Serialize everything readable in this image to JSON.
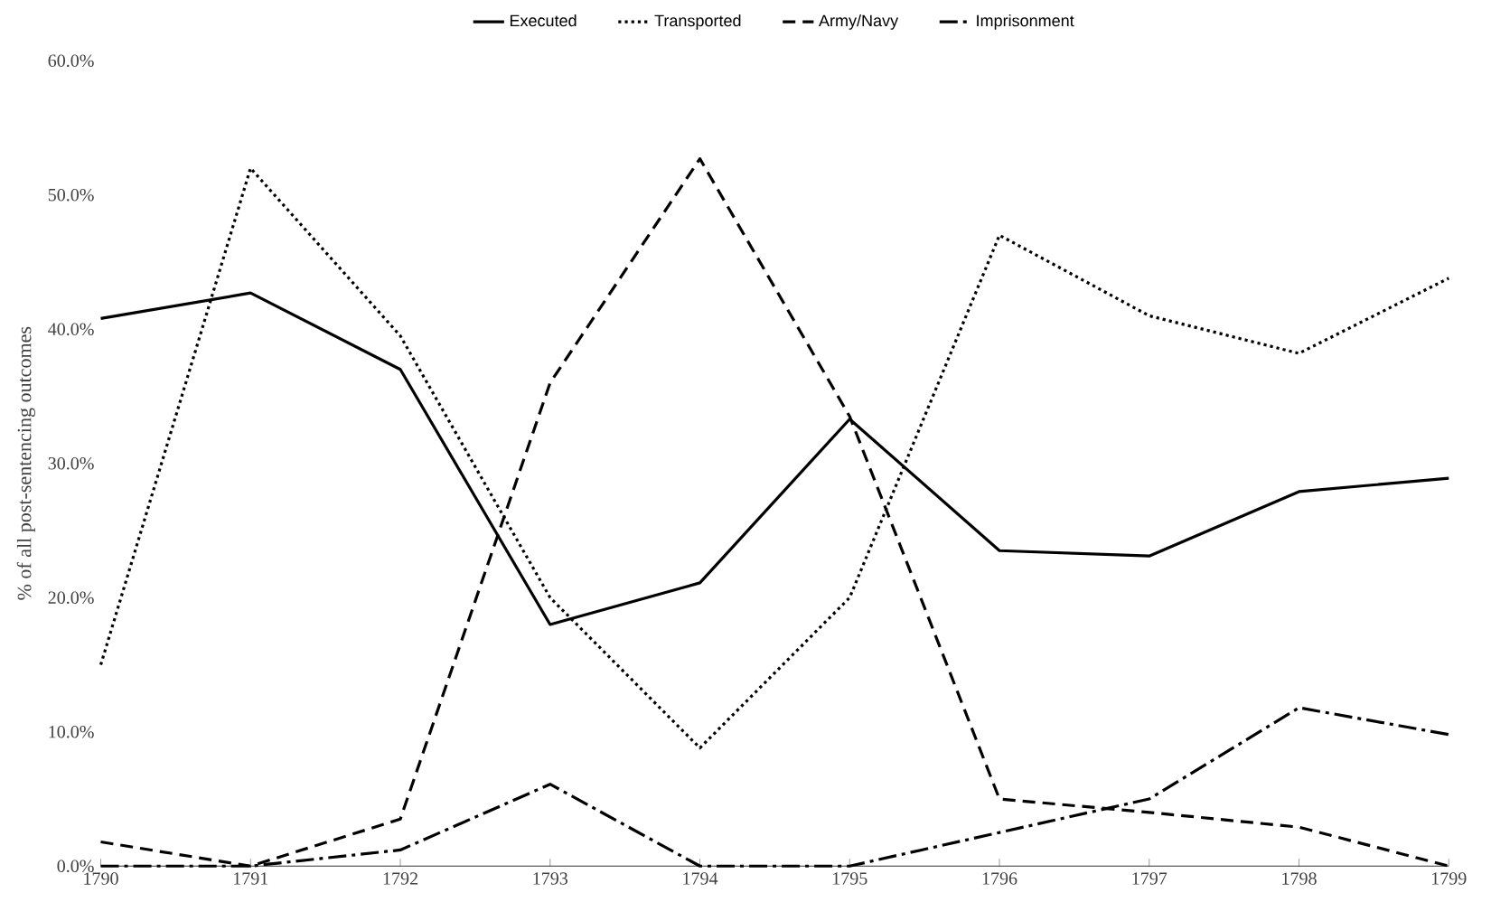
{
  "chart_data": {
    "type": "line",
    "ylabel": "% of all post-sentencing outcomes",
    "categories": [
      "1790",
      "1791",
      "1792",
      "1793",
      "1794",
      "1795",
      "1796",
      "1797",
      "1798",
      "1799"
    ],
    "series": [
      {
        "name": "Executed",
        "color": "#000000",
        "line_style": "solid",
        "values": [
          40.8,
          42.7,
          37.0,
          18.0,
          21.1,
          33.3,
          23.5,
          23.1,
          27.9,
          28.9
        ]
      },
      {
        "name": "Transported",
        "color": "#000000",
        "line_style": "dotted",
        "values": [
          15.0,
          52.0,
          39.5,
          20.0,
          8.8,
          20.0,
          47.0,
          41.0,
          38.2,
          43.8
        ]
      },
      {
        "name": "Army/Navy",
        "color": "#000000",
        "line_style": "dashed",
        "values": [
          1.8,
          0,
          3.5,
          36.0,
          52.7,
          33.5,
          5.0,
          4.0,
          2.9,
          0
        ]
      },
      {
        "name": "Imprisonment",
        "color": "#000000",
        "line_style": "dashdot",
        "values": [
          0,
          0,
          1.2,
          6.1,
          0,
          0,
          2.5,
          5.0,
          11.8,
          9.8
        ]
      }
    ],
    "ylim": [
      0,
      60
    ],
    "yticks": [
      {
        "value": 0,
        "label": "0.0%"
      },
      {
        "value": 10,
        "label": "10.0%"
      },
      {
        "value": 20,
        "label": "20.0%"
      },
      {
        "value": 30,
        "label": "30.0%"
      },
      {
        "value": 40,
        "label": "40.0%"
      },
      {
        "value": 50,
        "label": "50.0%"
      },
      {
        "value": 60,
        "label": "60.0%"
      }
    ],
    "grid": false,
    "legend": "top",
    "marker": "none"
  }
}
